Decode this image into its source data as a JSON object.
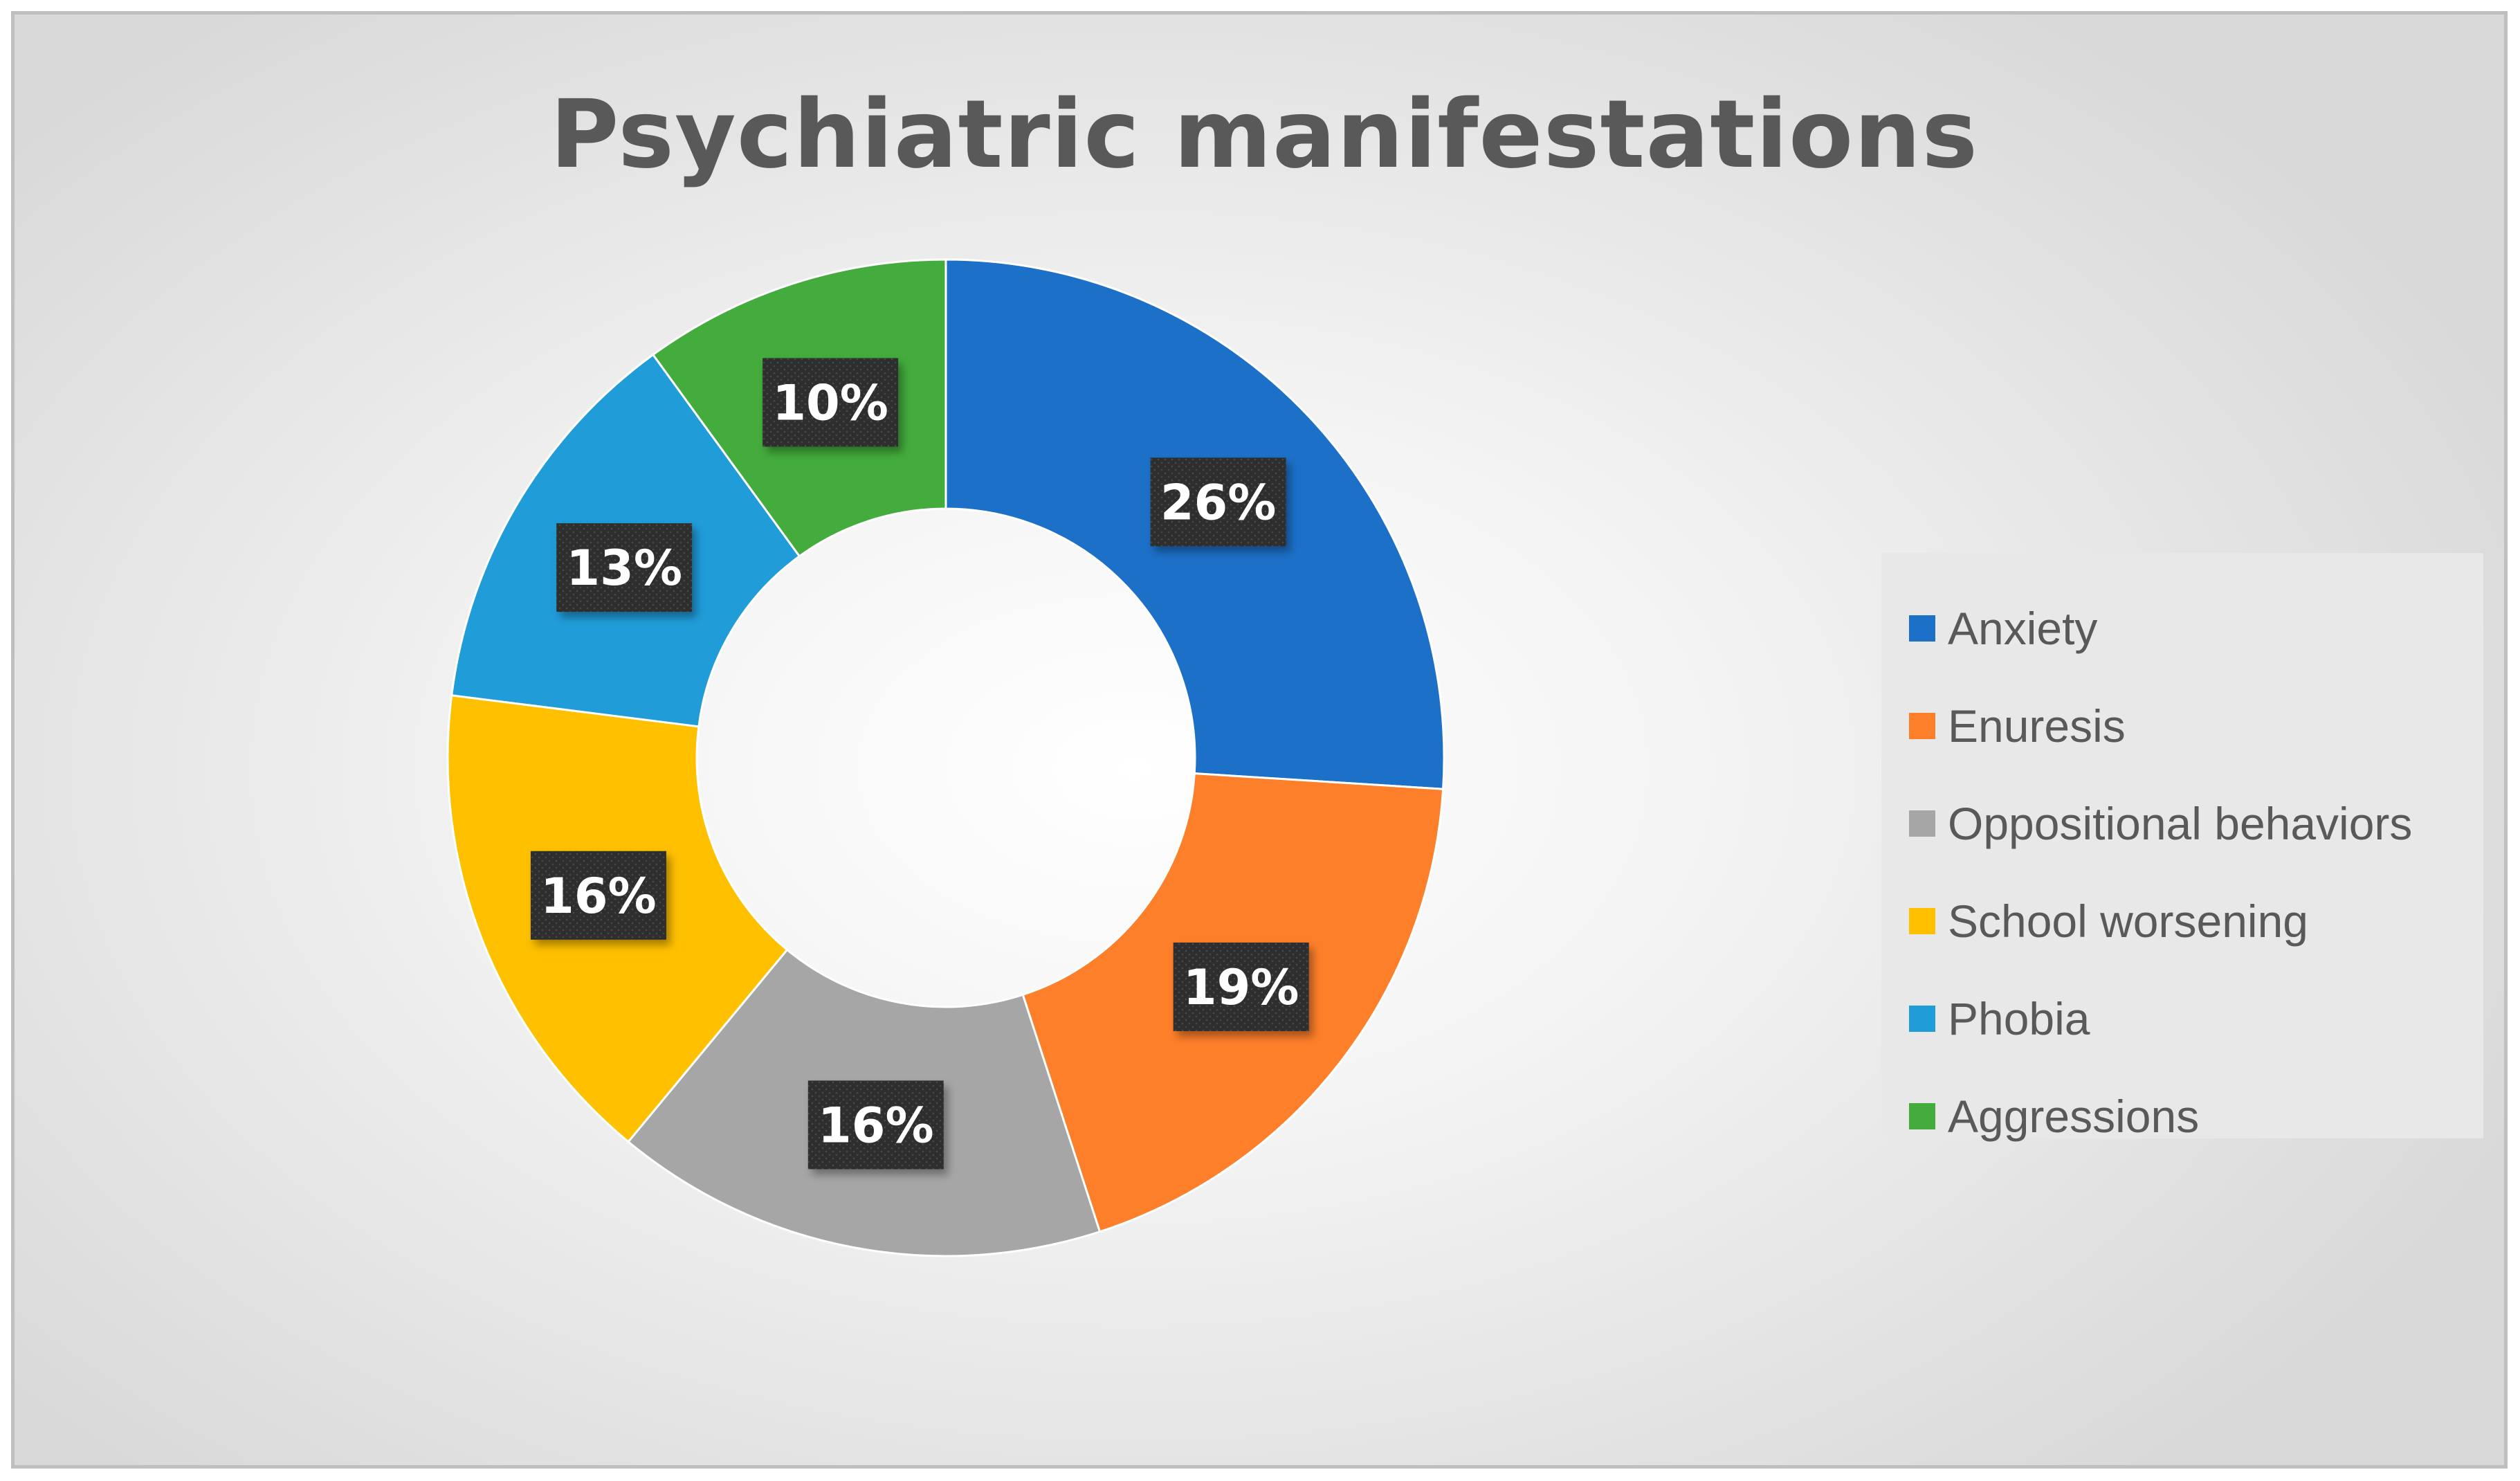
{
  "chart_data": {
    "type": "pie",
    "variant": "donut",
    "title": "Psychiatric manifestations",
    "categories": [
      "Anxiety",
      "Enuresis",
      "Oppositional behaviors",
      "School worsening",
      "Phobia",
      "Aggressions"
    ],
    "values": [
      26,
      19,
      16,
      16,
      13,
      10
    ],
    "data_labels": [
      "26%",
      "19%",
      "16%",
      "16%",
      "13%",
      "10%"
    ],
    "colors": [
      "#1c70c8",
      "#fe7f2a",
      "#a6a6a6",
      "#ffc000",
      "#209cd9",
      "#43ac3c"
    ],
    "legend_position": "right"
  }
}
